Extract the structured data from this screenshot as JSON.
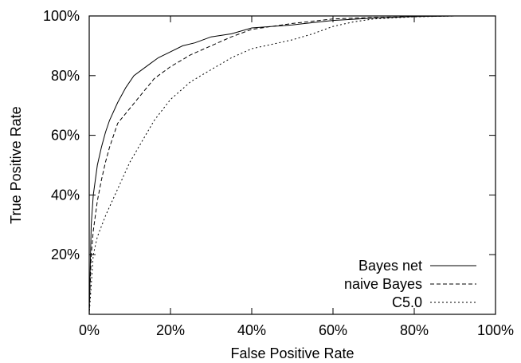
{
  "chart_data": {
    "type": "line",
    "title": "",
    "xlabel": "False Positive Rate",
    "ylabel": "True Positive Rate",
    "xlim": [
      0,
      100
    ],
    "ylim": [
      0,
      100
    ],
    "xticks": [
      0,
      20,
      40,
      60,
      80,
      100
    ],
    "yticks": [
      20,
      40,
      60,
      80,
      100
    ],
    "xtick_labels": [
      "0%",
      "20%",
      "40%",
      "60%",
      "80%",
      "100%"
    ],
    "ytick_labels": [
      "20%",
      "40%",
      "60%",
      "80%",
      "100%"
    ],
    "grid": false,
    "legend_position": "bottom-right",
    "series": [
      {
        "name": "Bayes net",
        "dash": "solid",
        "x": [
          0,
          0.5,
          1,
          2,
          3,
          4,
          5,
          7,
          9,
          11,
          13,
          15,
          17,
          20,
          23,
          26,
          30,
          35,
          40,
          50,
          60,
          70,
          80,
          90,
          100
        ],
        "y": [
          0,
          30,
          40,
          50,
          56,
          61,
          65,
          71,
          76,
          80,
          82,
          84,
          86,
          88,
          90,
          91,
          93,
          94,
          96,
          97,
          98.5,
          99.3,
          99.8,
          100,
          100
        ]
      },
      {
        "name": "naive Bayes",
        "dash": "dashed",
        "x": [
          0,
          0.5,
          1,
          2,
          3,
          4,
          5,
          7,
          10,
          13,
          16,
          20,
          25,
          30,
          35,
          40,
          50,
          60,
          70,
          80,
          90,
          100
        ],
        "y": [
          0,
          20,
          28,
          38,
          45,
          51,
          56,
          64,
          69,
          74,
          79,
          83,
          87,
          90,
          93,
          95.5,
          97.5,
          99,
          99.5,
          99.8,
          100,
          100
        ]
      },
      {
        "name": "C5.0",
        "dash": "dotted",
        "x": [
          0,
          1,
          2,
          4,
          6,
          8,
          10,
          13,
          16,
          20,
          25,
          30,
          35,
          40,
          45,
          50,
          55,
          60,
          65,
          70,
          80,
          90,
          100
        ],
        "y": [
          0,
          20,
          26,
          33,
          39,
          45,
          51,
          58,
          65,
          72,
          78,
          82,
          86,
          89,
          90.5,
          92,
          94,
          96.5,
          98,
          99,
          99.7,
          100,
          100
        ]
      }
    ]
  }
}
